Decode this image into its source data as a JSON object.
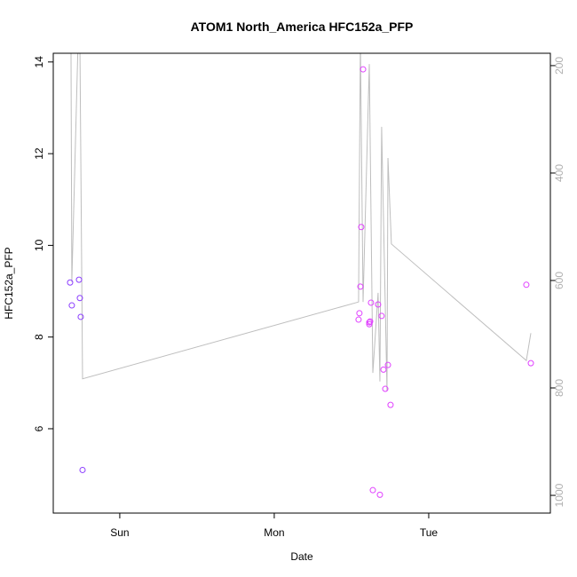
{
  "chart_data": {
    "type": "scatter",
    "title": "ATOM1 North_America HFC152a_PFP",
    "xlabel": "Date",
    "ylabel": "HFC152a_PFP",
    "x_ticks": [
      "Sun",
      "Mon",
      "Tue"
    ],
    "xlim": [
      "Sat 13:40",
      "Tue 18:54"
    ],
    "ylim": [
      4.16,
      14.19
    ],
    "y_ticks": [
      6,
      8,
      10,
      12,
      14
    ],
    "y2lim": [
      177,
      1033
    ],
    "y2_ticks": [
      200,
      400,
      600,
      800,
      1000
    ],
    "y2_reversed": true,
    "grid": false,
    "colors": {
      "early": "#8B3DFF",
      "late": "#E040FF",
      "line": "#BEBEBE",
      "axis2": "#B0B0B0"
    },
    "points": [
      {
        "x": "Sat 16:17",
        "y": 9.19,
        "c": "early"
      },
      {
        "x": "Sat 16:33",
        "y": 8.69,
        "c": "early"
      },
      {
        "x": "Sat 17:40",
        "y": 9.25,
        "c": "early"
      },
      {
        "x": "Sat 17:48",
        "y": 8.85,
        "c": "early"
      },
      {
        "x": "Sat 17:56",
        "y": 8.44,
        "c": "early"
      },
      {
        "x": "Sat 18:13",
        "y": 5.1,
        "c": "early"
      },
      {
        "x": "Mon 13:06",
        "y": 8.38,
        "c": "late"
      },
      {
        "x": "Mon 13:14",
        "y": 8.52,
        "c": "late"
      },
      {
        "x": "Mon 13:23",
        "y": 9.1,
        "c": "late"
      },
      {
        "x": "Mon 13:31",
        "y": 10.4,
        "c": "late"
      },
      {
        "x": "Mon 13:48",
        "y": 13.84,
        "c": "late"
      },
      {
        "x": "Mon 14:46",
        "y": 8.32,
        "c": "late"
      },
      {
        "x": "Mon 14:46",
        "y": 8.28,
        "c": "late"
      },
      {
        "x": "Mon 14:54",
        "y": 8.34,
        "c": "late"
      },
      {
        "x": "Mon 15:02",
        "y": 8.75,
        "c": "late"
      },
      {
        "x": "Mon 15:19",
        "y": 4.66,
        "c": "late"
      },
      {
        "x": "Mon 16:08",
        "y": 8.71,
        "c": "late"
      },
      {
        "x": "Mon 16:25",
        "y": 4.56,
        "c": "late"
      },
      {
        "x": "Mon 16:41",
        "y": 8.46,
        "c": "late"
      },
      {
        "x": "Mon 16:58",
        "y": 7.29,
        "c": "late"
      },
      {
        "x": "Mon 17:15",
        "y": 6.87,
        "c": "late"
      },
      {
        "x": "Mon 17:40",
        "y": 7.39,
        "c": "late"
      },
      {
        "x": "Mon 18:04",
        "y": 6.52,
        "c": "late"
      },
      {
        "x": "Tue 15:10",
        "y": 9.14,
        "c": "late"
      },
      {
        "x": "Tue 15:52",
        "y": 7.43,
        "c": "late"
      }
    ],
    "line_right_axis": [
      {
        "x": "Sat 16:25",
        "y": 150
      },
      {
        "x": "Sat 16:33",
        "y": 603
      },
      {
        "x": "Sat 17:32",
        "y": 150
      },
      {
        "x": "Sat 17:48",
        "y": 150
      },
      {
        "x": "Sat 18:13",
        "y": 783
      },
      {
        "x": "Mon 13:06",
        "y": 640
      },
      {
        "x": "Mon 13:23",
        "y": 150
      },
      {
        "x": "Mon 13:48",
        "y": 640
      },
      {
        "x": "Mon 14:46",
        "y": 197
      },
      {
        "x": "Mon 15:19",
        "y": 772
      },
      {
        "x": "Mon 16:08",
        "y": 623
      },
      {
        "x": "Mon 16:25",
        "y": 788
      },
      {
        "x": "Mon 16:41",
        "y": 314
      },
      {
        "x": "Mon 17:31",
        "y": 805
      },
      {
        "x": "Mon 17:40",
        "y": 372
      },
      {
        "x": "Mon 18:12",
        "y": 532
      },
      {
        "x": "Tue 15:10",
        "y": 749
      },
      {
        "x": "Tue 15:52",
        "y": 698
      }
    ]
  }
}
